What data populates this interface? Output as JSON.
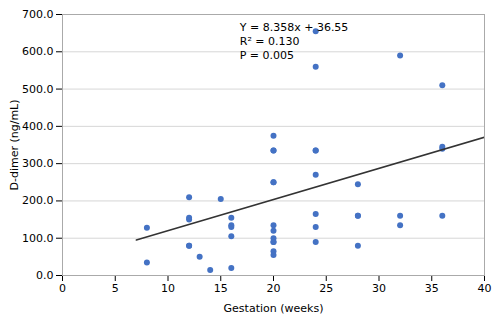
{
  "chart_data": {
    "type": "scatter",
    "xlabel": "Gestation (weeks)",
    "ylabel": "D-dimer (ng/mL)",
    "xlim": [
      0,
      40
    ],
    "ylim": [
      0,
      700
    ],
    "xticks": [
      0,
      5,
      10,
      15,
      20,
      25,
      30,
      35,
      40
    ],
    "yticks": [
      {
        "value": 0,
        "label": "0.0"
      },
      {
        "value": 100,
        "label": "100.0"
      },
      {
        "value": 200,
        "label": "200.0"
      },
      {
        "value": 300,
        "label": "300.0"
      },
      {
        "value": 400,
        "label": "400.0"
      },
      {
        "value": 500,
        "label": "500.0"
      },
      {
        "value": 600,
        "label": "600.0"
      },
      {
        "value": 700,
        "label": "700.0"
      }
    ],
    "grid": true,
    "series": [
      {
        "type": "scatter",
        "color": "#4472C4",
        "marker": "circle",
        "x": [
          8,
          8,
          12,
          12,
          12,
          12,
          12,
          13,
          14,
          15,
          16,
          16,
          16,
          16,
          16,
          20,
          20,
          20,
          20,
          20,
          20,
          20,
          20,
          20,
          20,
          20,
          20,
          24,
          24,
          24,
          24,
          24,
          24,
          24,
          24,
          28,
          28,
          28,
          28,
          32,
          32,
          32,
          36,
          36,
          36,
          36
        ],
        "values": [
          128,
          35,
          210,
          150,
          155,
          80,
          80,
          50,
          15,
          205,
          155,
          130,
          135,
          105,
          20,
          375,
          335,
          335,
          250,
          250,
          135,
          120,
          100,
          90,
          90,
          65,
          55,
          655,
          560,
          335,
          335,
          270,
          165,
          130,
          90,
          245,
          160,
          160,
          80,
          590,
          160,
          135,
          510,
          345,
          340,
          160
        ]
      },
      {
        "type": "line",
        "color": "#333333",
        "line_style": "solid",
        "x": [
          7.0,
          40.0
        ],
        "values": [
          95.056,
          370.87
        ]
      }
    ],
    "annotations": [
      "Y = 8.358x + 36.55",
      "R² = 0.130",
      "P = 0.005"
    ]
  }
}
